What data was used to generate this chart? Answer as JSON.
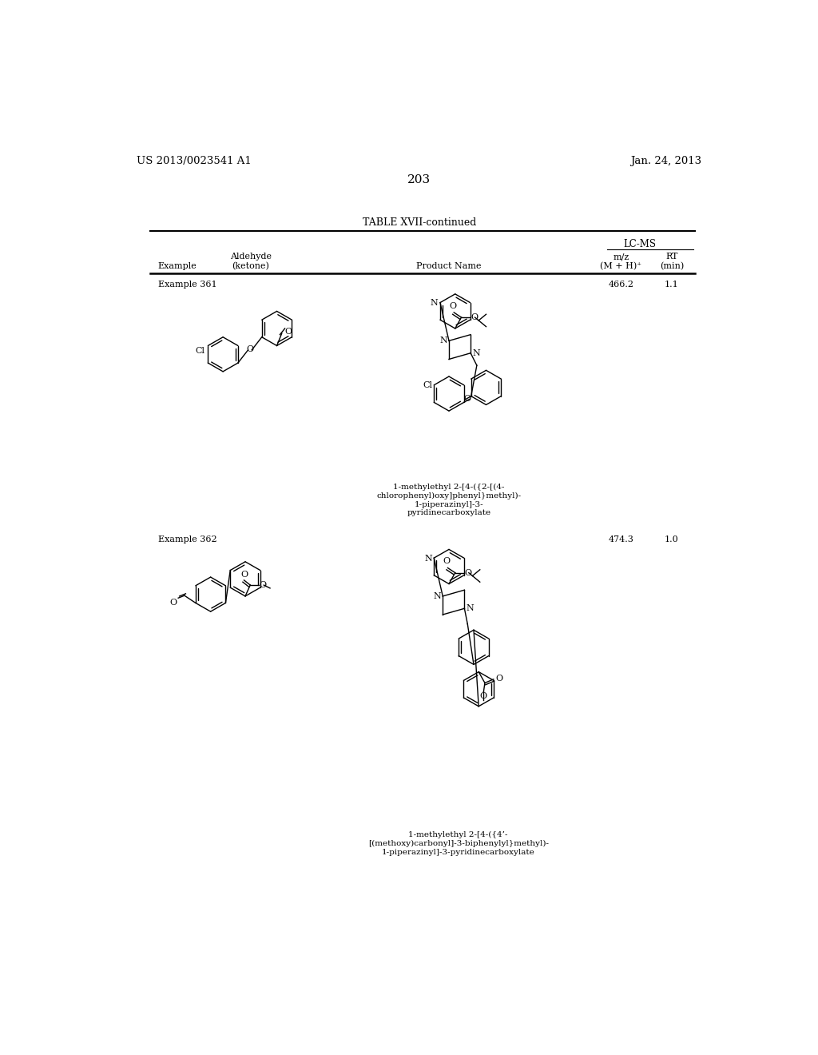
{
  "page_number": "203",
  "patent_number": "US 2013/0023541 A1",
  "patent_date": "Jan. 24, 2013",
  "table_title": "TABLE XVII-continued",
  "background_color": "#ffffff",
  "text_color": "#000000",
  "header_col1": "Example",
  "header_col2_line1": "Aldehyde",
  "header_col2_line2": "(ketone)",
  "header_col3": "Product Name",
  "header_lcms": "LC-MS",
  "header_mz_line1": "m/z",
  "header_mz_line2": "(M + H)⁺",
  "header_rt_line1": "RT",
  "header_rt_line2": "(min)",
  "example1_label": "Example 361",
  "example1_mz": "466.2",
  "example1_rt": "1.1",
  "example1_name_line1": "1-methylethyl 2-[4-({2-[(4-",
  "example1_name_line2": "chlorophenyl)oxy]phenyl}methyl)-",
  "example1_name_line3": "1-piperazinyl]-3-",
  "example1_name_line4": "pyridinecarboxylate",
  "example2_label": "Example 362",
  "example2_mz": "474.3",
  "example2_rt": "1.0",
  "example2_name_line1": "1-methylethyl 2-[4-({4’-",
  "example2_name_line2": "[(methoxy)carbonyl]-3-biphenylyl}methyl)-",
  "example2_name_line3": "1-piperazinyl]-3-pyridinecarboxylate",
  "line_color": "#000000"
}
